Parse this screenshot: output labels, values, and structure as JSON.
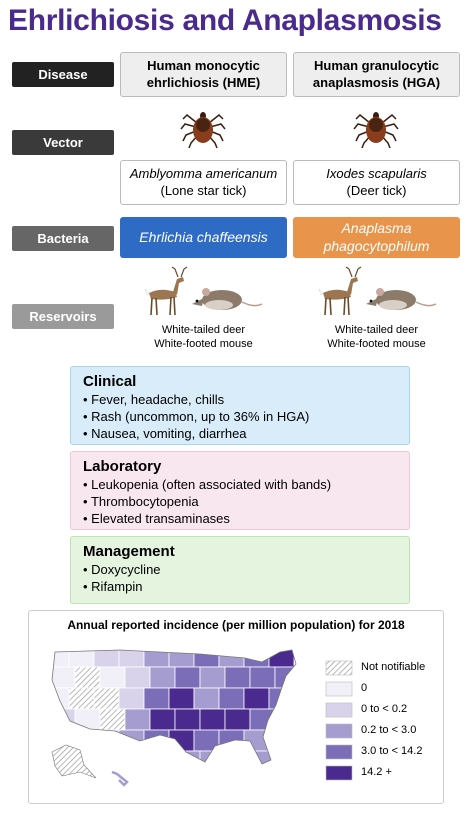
{
  "title": "Ehrlichiosis and Anaplasmosis",
  "rows": {
    "disease": "Disease",
    "vector": "Vector",
    "bacteria": "Bacteria",
    "reservoirs": "Reservoirs"
  },
  "columns": [
    {
      "disease": "Human monocytic ehrlichiosis (HME)",
      "vector_name": "Amblyomma americanum",
      "vector_common": "(Lone star tick)",
      "bacteria": "Ehrlichia chaffeensis",
      "bacteria_color": "#2e6bc4",
      "reservoirs": [
        "White-tailed deer",
        "White-footed mouse"
      ]
    },
    {
      "disease": "Human granulocytic anaplasmosis (HGA)",
      "vector_name": "Ixodes scapularis",
      "vector_common": "(Deer tick)",
      "bacteria": "Anaplasma phagocytophilum",
      "bacteria_color": "#e8944a",
      "reservoirs": [
        "White-tailed deer",
        "White-footed mouse"
      ]
    }
  ],
  "sections": [
    {
      "heading": "Clinical",
      "color": "#d8ecf9",
      "border": "#a9d4ef",
      "items": [
        "Fever, headache, chills",
        "Rash (uncommon, up to 36% in HGA)",
        "Nausea, vomiting, diarrhea"
      ]
    },
    {
      "heading": "Laboratory",
      "color": "#f9e7f0",
      "border": "#efc6db",
      "items": [
        "Leukopenia (often associated with bands)",
        "Thrombocytopenia",
        "Elevated transaminases"
      ]
    },
    {
      "heading": "Management",
      "color": "#e4f4df",
      "border": "#bfe2b4",
      "items": [
        "Doxycycline",
        "Rifampin"
      ]
    }
  ],
  "map": {
    "title": "Annual reported incidence (per million population) for 2018",
    "legend": [
      {
        "label": "Not notifiable",
        "color": "#9a9a9a"
      },
      {
        "label": "0",
        "color": "#f1eff7"
      },
      {
        "label": "0 to < 0.2",
        "color": "#d8d3ea"
      },
      {
        "label": "0.2 to < 3.0",
        "color": "#a59dcf"
      },
      {
        "label": "3.0 to < 14.2",
        "color": "#7b6db7"
      },
      {
        "label": "14.2 +",
        "color": "#4b2a8f"
      }
    ]
  }
}
